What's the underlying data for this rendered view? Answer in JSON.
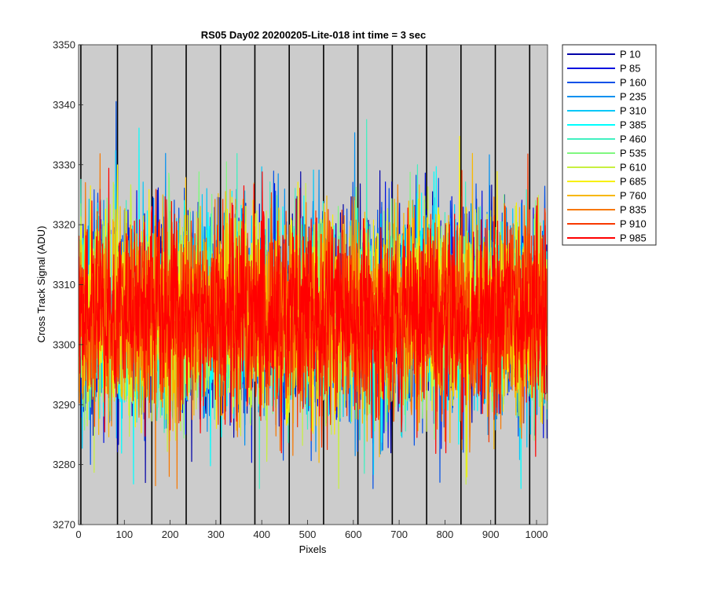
{
  "chart_data": {
    "type": "line",
    "title": "RS05 Day02 20200205-Lite-018 int time = 3 sec",
    "xlabel": "Pixels",
    "ylabel": "Cross Track Signal (ADU)",
    "xlim": [
      0,
      1024
    ],
    "ylim": [
      3270,
      3350
    ],
    "x_ticks": [
      "0",
      "100",
      "200",
      "300",
      "400",
      "500",
      "600",
      "700",
      "800",
      "900",
      "1000"
    ],
    "y_ticks": [
      "3270",
      "3280",
      "3290",
      "3300",
      "3310",
      "3320",
      "3330",
      "3340",
      "3350"
    ],
    "x_tick_values": [
      0,
      100,
      200,
      300,
      400,
      500,
      600,
      700,
      800,
      900,
      1000
    ],
    "y_tick_values": [
      3270,
      3280,
      3290,
      3300,
      3310,
      3320,
      3330,
      3340,
      3350
    ],
    "plot_background": "#cccccc",
    "grid": false,
    "legend_position": "outside-right",
    "vertical_markers": [
      5,
      85,
      160,
      235,
      310,
      385,
      460,
      535,
      610,
      685,
      760,
      835,
      910,
      985
    ],
    "series_summary": {
      "mean": 3305,
      "noise_sd": 8,
      "points_per_series": 1024
    },
    "series": [
      {
        "name": "P 10",
        "color": "#0000a8"
      },
      {
        "name": "P 85",
        "color": "#0010e0"
      },
      {
        "name": "P 160",
        "color": "#0050e8"
      },
      {
        "name": "P 235",
        "color": "#0090f0"
      },
      {
        "name": "P 310",
        "color": "#00c8f8"
      },
      {
        "name": "P 385",
        "color": "#00ffff"
      },
      {
        "name": "P 460",
        "color": "#40f0c0"
      },
      {
        "name": "P 535",
        "color": "#80f880"
      },
      {
        "name": "P 610",
        "color": "#c8f040"
      },
      {
        "name": "P 685",
        "color": "#f8f000"
      },
      {
        "name": "P 760",
        "color": "#f8b800"
      },
      {
        "name": "P 835",
        "color": "#f87800"
      },
      {
        "name": "P 910",
        "color": "#f83800"
      },
      {
        "name": "P 985",
        "color": "#ff0000"
      }
    ]
  }
}
